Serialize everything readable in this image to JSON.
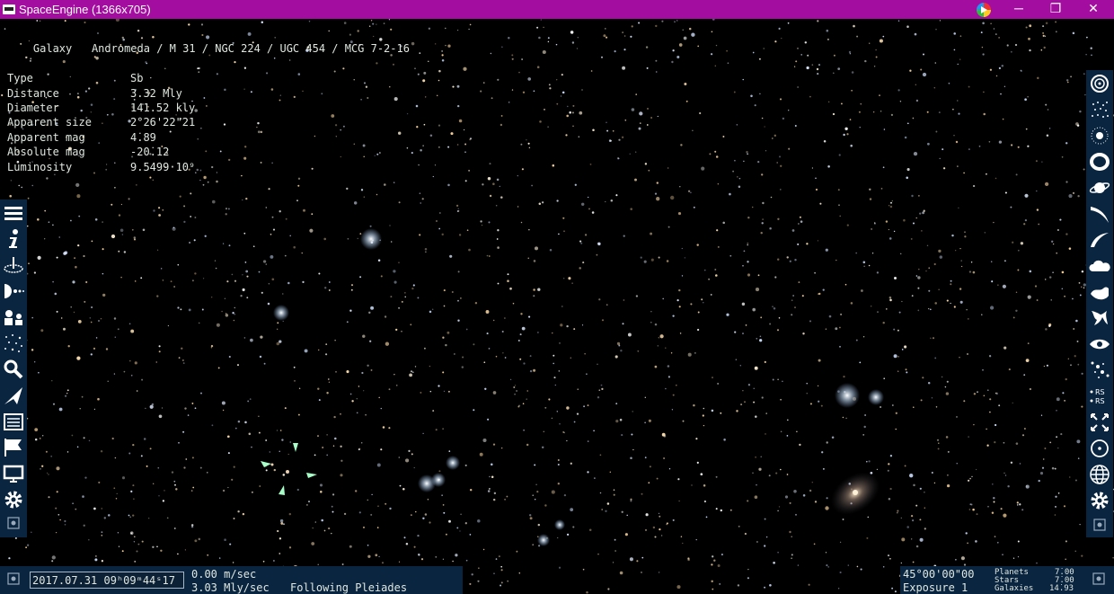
{
  "window": {
    "title": "SpaceEngine (1366x705)",
    "controls": {
      "minimize": "─",
      "maximize": "❐",
      "close": "✕"
    }
  },
  "info_panel": {
    "heading_type": "Galaxy",
    "heading_names": "Andromeda / M 31 / NGC 224 / UGC 454 / MCG 7-2-16",
    "rows": [
      {
        "key": "Type",
        "value": "Sb"
      },
      {
        "key": "Distance",
        "value": "3.32 Mly"
      },
      {
        "key": "Diameter",
        "value": "141.52 kly"
      },
      {
        "key": "Apparent size",
        "value": "2°26'22\"21"
      },
      {
        "key": "Apparent mag",
        "value": "4̇.89"
      },
      {
        "key": "Absolute mag",
        "value": "-20̇.12"
      },
      {
        "key": "Luminosity",
        "value": "9.5499·10⁹"
      }
    ]
  },
  "left_toolbar": [
    "menu-icon",
    "info-icon",
    "location-icon",
    "distance-icon",
    "objects-icon",
    "stars-icon",
    "search-icon",
    "ship-icon",
    "scenario-icon",
    "flag-icon",
    "display-icon",
    "settings-icon"
  ],
  "right_toolbar": [
    "galaxies-filter-icon",
    "clusters-filter-icon",
    "nebulae-filter-icon",
    "rings-filter-icon",
    "planets-filter-icon",
    "comets-filter-icon",
    "orbits-filter-icon",
    "clouds-filter-icon",
    "wave-filter-icon",
    "filaments-filter-icon",
    "eye-filter-icon",
    "points-filter-icon",
    "rs-filter-icon",
    "arrows-filter-icon",
    "target-icon",
    "globe-icon",
    "settings-icon"
  ],
  "bottom_left": {
    "datetime": "2017.07.31  09ʰ09ᵐ44ˢ17",
    "speed": "0.00  m/sec",
    "speed_2": "3.03  Mly/sec",
    "mode": "Following  Pleiades"
  },
  "bottom_right": {
    "fov": "45°00'00\"00",
    "exposure": "Exposure  1",
    "labels": [
      "Planets",
      "Stars",
      "Galaxies"
    ],
    "values": [
      "7̇.00",
      "7̇.00",
      "14̇.93"
    ],
    "rs_label": "RS"
  },
  "colors": {
    "titlebar": "#a40ea0",
    "panel": "#0a2540",
    "text": "#dfe7e0"
  }
}
